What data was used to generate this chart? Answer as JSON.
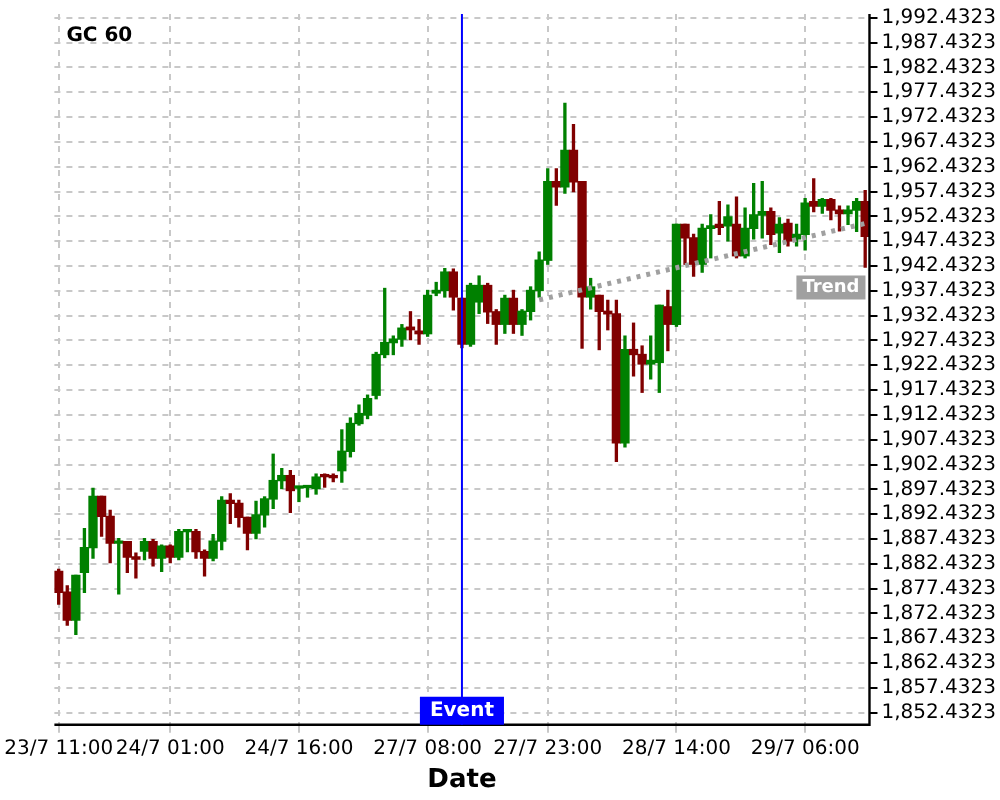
{
  "chart_data": {
    "type": "candlestick",
    "title": "GC 60",
    "xlabel": "Date",
    "categories": [
      "23/7 11:00",
      null,
      null,
      null,
      null,
      null,
      null,
      null,
      null,
      null,
      null,
      null,
      null,
      "24/7 01:00",
      null,
      null,
      null,
      null,
      null,
      null,
      null,
      null,
      null,
      null,
      null,
      null,
      null,
      null,
      "24/7 16:00",
      null,
      null,
      null,
      null,
      null,
      null,
      null,
      null,
      null,
      null,
      null,
      null,
      null,
      null,
      "27/7 08:00",
      null,
      null,
      null,
      null,
      null,
      null,
      null,
      null,
      null,
      null,
      null,
      null,
      null,
      "27/7 23:00",
      null,
      null,
      null,
      null,
      null,
      null,
      null,
      null,
      null,
      null,
      null,
      null,
      null,
      null,
      "28/7 14:00",
      null,
      null,
      null,
      null,
      null,
      null,
      null,
      null,
      null,
      null,
      null,
      null,
      null,
      null,
      "29/7 06:00",
      null,
      null,
      null,
      null,
      null,
      null,
      null
    ],
    "ohlc": [
      [
        1880.9,
        1881.3,
        1874.3,
        1876.7
      ],
      [
        1876.7,
        1878.0,
        1870.1,
        1871.1
      ],
      [
        1871.1,
        1880.1,
        1868.2,
        1880.1
      ],
      [
        1880.7,
        1889.5,
        1876.7,
        1885.7
      ],
      [
        1885.7,
        1897.6,
        1883.6,
        1896.0
      ],
      [
        1896.0,
        1896.0,
        1888.0,
        1892.0
      ],
      [
        1892.0,
        1893.2,
        1882.7,
        1886.6
      ],
      [
        1886.6,
        1887.5,
        1876.4,
        1887.0
      ],
      [
        1886.9,
        1886.9,
        1880.7,
        1883.8
      ],
      [
        1883.8,
        1884.6,
        1879.6,
        1883.4
      ],
      [
        1885.0,
        1887.5,
        1883.3,
        1886.9
      ],
      [
        1886.9,
        1887.3,
        1882.0,
        1883.6
      ],
      [
        1883.6,
        1886.2,
        1880.9,
        1886.0
      ],
      [
        1886.0,
        1886.2,
        1882.7,
        1883.8
      ],
      [
        1883.8,
        1889.3,
        1883.3,
        1888.9
      ],
      [
        1888.9,
        1889.1,
        1884.9,
        1889.1
      ],
      [
        1888.9,
        1889.3,
        1883.6,
        1884.9
      ],
      [
        1884.9,
        1885.2,
        1880.0,
        1883.6
      ],
      [
        1883.6,
        1888.3,
        1883.1,
        1887.0
      ],
      [
        1887.0,
        1895.9,
        1885.3,
        1895.2
      ],
      [
        1895.2,
        1896.5,
        1890.6,
        1894.6
      ],
      [
        1894.6,
        1895.2,
        1889.9,
        1891.8
      ],
      [
        1891.8,
        1891.8,
        1885.3,
        1888.6
      ],
      [
        1888.6,
        1895.0,
        1887.5,
        1892.3
      ],
      [
        1892.3,
        1895.9,
        1889.9,
        1895.5
      ],
      [
        1895.5,
        1904.5,
        1893.6,
        1899.2
      ],
      [
        1899.2,
        1901.6,
        1897.6,
        1900.2
      ],
      [
        1900.2,
        1901.2,
        1892.8,
        1897.2
      ],
      [
        1897.7,
        1897.9,
        1895.0,
        1897.9
      ],
      [
        1897.8,
        1898.0,
        1895.9,
        1898.0
      ],
      [
        1897.6,
        1900.5,
        1896.5,
        1899.9
      ],
      [
        1900.2,
        1900.5,
        1897.9,
        1900.0
      ],
      [
        1900.2,
        1900.5,
        1899.0,
        1899.8
      ],
      [
        1901.2,
        1909.4,
        1898.9,
        1905.1
      ],
      [
        1905.1,
        1911.8,
        1904.0,
        1910.7
      ],
      [
        1910.7,
        1914.4,
        1910.4,
        1912.7
      ],
      [
        1912.4,
        1916.4,
        1911.7,
        1915.7
      ],
      [
        1916.4,
        1925.0,
        1915.7,
        1924.6
      ],
      [
        1924.6,
        1937.9,
        1924.0,
        1927.0
      ],
      [
        1927.0,
        1928.3,
        1924.6,
        1927.7
      ],
      [
        1927.7,
        1930.6,
        1926.3,
        1929.9
      ],
      [
        1930.1,
        1933.2,
        1927.6,
        1929.6
      ],
      [
        1929.3,
        1931.6,
        1926.7,
        1928.8
      ],
      [
        1928.8,
        1937.5,
        1928.3,
        1936.5
      ],
      [
        1937.0,
        1939.1,
        1936.5,
        1937.5
      ],
      [
        1937.5,
        1941.9,
        1936.2,
        1941.2
      ],
      [
        1941.2,
        1941.8,
        1933.6,
        1936.2
      ],
      [
        1935.9,
        1935.9,
        1926.0,
        1926.7
      ],
      [
        1926.7,
        1938.9,
        1926.3,
        1938.5
      ],
      [
        1935.2,
        1940.4,
        1932.9,
        1938.5
      ],
      [
        1938.5,
        1938.9,
        1930.9,
        1933.2
      ],
      [
        1933.2,
        1933.6,
        1926.7,
        1930.7
      ],
      [
        1930.7,
        1936.5,
        1928.9,
        1935.9
      ],
      [
        1935.9,
        1937.5,
        1928.9,
        1930.7
      ],
      [
        1930.7,
        1933.6,
        1928.5,
        1933.3
      ],
      [
        1933.3,
        1938.2,
        1931.6,
        1937.5
      ],
      [
        1937.5,
        1945.2,
        1936.2,
        1943.6
      ],
      [
        1943.6,
        1962.0,
        1942.8,
        1959.4
      ],
      [
        1959.4,
        1962.0,
        1954.7,
        1958.4
      ],
      [
        1958.4,
        1975.2,
        1957.1,
        1965.7
      ],
      [
        1965.7,
        1970.9,
        1957.4,
        1959.4
      ],
      [
        1959.4,
        1959.4,
        1925.9,
        1936.2
      ],
      [
        1936.2,
        1939.9,
        1933.8,
        1938.2
      ],
      [
        1936.5,
        1936.5,
        1925.6,
        1933.3
      ],
      [
        1933.3,
        1935.5,
        1929.6,
        1932.8
      ],
      [
        1932.8,
        1935.5,
        1903.1,
        1906.8
      ],
      [
        1906.8,
        1928.3,
        1906.0,
        1925.6
      ],
      [
        1925.6,
        1930.9,
        1920.3,
        1924.6
      ],
      [
        1924.6,
        1926.3,
        1917.0,
        1922.7
      ],
      [
        1922.7,
        1928.3,
        1919.7,
        1923.4
      ],
      [
        1923.0,
        1934.5,
        1917.0,
        1934.5
      ],
      [
        1934.2,
        1937.5,
        1925.4,
        1930.7
      ],
      [
        1930.7,
        1950.8,
        1930.3,
        1950.8
      ],
      [
        1950.8,
        1950.8,
        1942.8,
        1948.1
      ],
      [
        1948.1,
        1948.8,
        1940.4,
        1942.8
      ],
      [
        1942.8,
        1950.8,
        1941.2,
        1950.0
      ],
      [
        1950.0,
        1952.7,
        1944.1,
        1950.5
      ],
      [
        1950.8,
        1955.4,
        1948.8,
        1950.2
      ],
      [
        1950.5,
        1954.7,
        1947.5,
        1952.3
      ],
      [
        1950.8,
        1956.3,
        1944.1,
        1944.5
      ],
      [
        1944.5,
        1954.1,
        1944.1,
        1950.0
      ],
      [
        1950.0,
        1959.0,
        1947.9,
        1952.7
      ],
      [
        1952.7,
        1959.4,
        1948.1,
        1953.4
      ],
      [
        1953.4,
        1954.1,
        1946.8,
        1948.8
      ],
      [
        1949.1,
        1952.1,
        1945.2,
        1950.8
      ],
      [
        1951.0,
        1951.8,
        1946.5,
        1947.5
      ],
      [
        1947.9,
        1950.8,
        1946.5,
        1948.8
      ],
      [
        1948.8,
        1956.0,
        1945.7,
        1955.1
      ],
      [
        1955.4,
        1960.0,
        1953.4,
        1954.5
      ],
      [
        1954.5,
        1956.0,
        1953.1,
        1955.8
      ],
      [
        1955.8,
        1956.0,
        1951.8,
        1953.7
      ],
      [
        1953.7,
        1954.5,
        1949.5,
        1953.0
      ],
      [
        1953.0,
        1954.5,
        1950.8,
        1953.7
      ],
      [
        1953.7,
        1956.0,
        1949.4,
        1955.4
      ],
      [
        1955.4,
        1957.6,
        1942.2,
        1948.4
      ]
    ],
    "colors": [
      "#800000",
      "#800000",
      "#008000",
      "#008000",
      "#008000",
      "#800000",
      "#800000",
      "#008000",
      "#800000",
      "#800000",
      "#008000",
      "#800000",
      "#008000",
      "#800000",
      "#008000",
      "#008000",
      "#800000",
      "#800000",
      "#008000",
      "#008000",
      "#800000",
      "#800000",
      "#800000",
      "#008000",
      "#008000",
      "#008000",
      "#008000",
      "#800000",
      "#008000",
      "#008000",
      "#008000",
      "#800000",
      "#800000",
      "#008000",
      "#008000",
      "#008000",
      "#008000",
      "#008000",
      "#008000",
      "#008000",
      "#008000",
      "#800000",
      "#800000",
      "#008000",
      "#008000",
      "#008000",
      "#800000",
      "#800000",
      "#008000",
      "#008000",
      "#800000",
      "#800000",
      "#008000",
      "#800000",
      "#008000",
      "#008000",
      "#008000",
      "#008000",
      "#800000",
      "#008000",
      "#800000",
      "#800000",
      "#008000",
      "#800000",
      "#800000",
      "#800000",
      "#008000",
      "#800000",
      "#800000",
      "#008000",
      "#008000",
      "#800000",
      "#008000",
      "#800000",
      "#800000",
      "#008000",
      "#008000",
      "#800000",
      "#008000",
      "#800000",
      "#008000",
      "#008000",
      "#008000",
      "#800000",
      "#008000",
      "#800000",
      "#008000",
      "#008000",
      "#800000",
      "#008000",
      "#800000",
      "#800000",
      "#008000",
      "#008000",
      "#800000"
    ],
    "series": [
      {
        "name": "Trend",
        "type": "line",
        "color": "#a0a0a0",
        "line_style": "dotted",
        "marker": "none",
        "values": [
          null,
          null,
          null,
          null,
          null,
          null,
          null,
          null,
          null,
          null,
          null,
          null,
          null,
          null,
          null,
          null,
          null,
          null,
          null,
          null,
          null,
          null,
          null,
          null,
          null,
          null,
          null,
          null,
          null,
          null,
          null,
          null,
          null,
          null,
          null,
          null,
          null,
          null,
          null,
          null,
          null,
          null,
          null,
          null,
          null,
          null,
          null,
          null,
          null,
          null,
          null,
          null,
          null,
          null,
          null,
          null,
          1935.6,
          null,
          null,
          null,
          null,
          null,
          null,
          null,
          null,
          null,
          null,
          null,
          null,
          null,
          null,
          null,
          null,
          null,
          null,
          null,
          null,
          null,
          null,
          null,
          null,
          null,
          null,
          null,
          null,
          null,
          null,
          null,
          null,
          null,
          null,
          null,
          null,
          null,
          1951.0
        ]
      }
    ],
    "annotations": [
      "Event"
    ],
    "ylim": [
      1850.0,
      1993.2
    ],
    "yticks": [
      {
        "value": 1852.4323,
        "label": "1,852.4323"
      },
      {
        "value": 1857.4323,
        "label": "1,857.4323"
      },
      {
        "value": 1862.4323,
        "label": "1,862.4323"
      },
      {
        "value": 1867.4323,
        "label": "1,867.4323"
      },
      {
        "value": 1872.4323,
        "label": "1,872.4323"
      },
      {
        "value": 1877.4323,
        "label": "1,877.4323"
      },
      {
        "value": 1882.4323,
        "label": "1,882.4323"
      },
      {
        "value": 1887.4323,
        "label": "1,887.4323"
      },
      {
        "value": 1892.4323,
        "label": "1,892.4323"
      },
      {
        "value": 1897.4323,
        "label": "1,897.4323"
      },
      {
        "value": 1902.4323,
        "label": "1,902.4323"
      },
      {
        "value": 1907.4323,
        "label": "1,907.4323"
      },
      {
        "value": 1912.4323,
        "label": "1,912.4323"
      },
      {
        "value": 1917.4323,
        "label": "1,917.4323"
      },
      {
        "value": 1922.4323,
        "label": "1,922.4323"
      },
      {
        "value": 1927.4323,
        "label": "1,927.4323"
      },
      {
        "value": 1932.4323,
        "label": "1,932.4323"
      },
      {
        "value": 1937.4323,
        "label": "1,937.4323"
      },
      {
        "value": 1942.4323,
        "label": "1,942.4323"
      },
      {
        "value": 1947.4323,
        "label": "1,947.4323"
      },
      {
        "value": 1952.4323,
        "label": "1,952.4323"
      },
      {
        "value": 1957.4323,
        "label": "1,957.4323"
      },
      {
        "value": 1962.4323,
        "label": "1,962.4323"
      },
      {
        "value": 1967.4323,
        "label": "1,967.4323"
      },
      {
        "value": 1972.4323,
        "label": "1,972.4323"
      },
      {
        "value": 1977.4323,
        "label": "1,977.4323"
      },
      {
        "value": 1982.4323,
        "label": "1,982.4323"
      },
      {
        "value": 1987.4323,
        "label": "1,987.4323"
      },
      {
        "value": 1992.4323,
        "label": "1,992.4323"
      }
    ],
    "grid": true,
    "legend": false
  }
}
